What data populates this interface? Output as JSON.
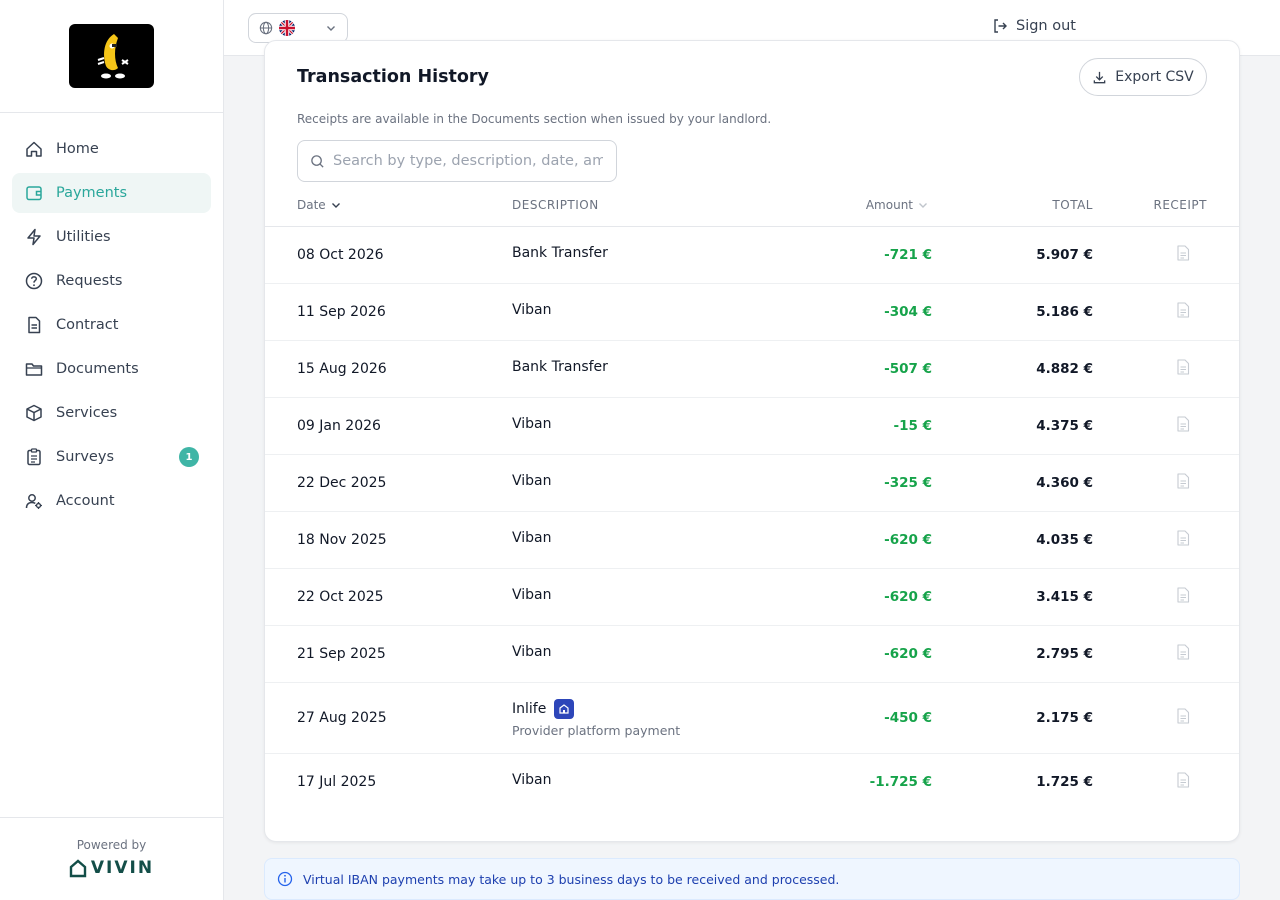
{
  "sidebar": {
    "logo_alt": "Tenant logo",
    "items": [
      {
        "label": "Home",
        "icon": "home-icon"
      },
      {
        "label": "Payments",
        "icon": "wallet-icon",
        "active": true
      },
      {
        "label": "Utilities",
        "icon": "lightning-icon"
      },
      {
        "label": "Requests",
        "icon": "question-icon"
      },
      {
        "label": "Contract",
        "icon": "document-icon"
      },
      {
        "label": "Documents",
        "icon": "folder-icon"
      },
      {
        "label": "Services",
        "icon": "box-icon"
      },
      {
        "label": "Surveys",
        "icon": "clipboard-icon",
        "badge": "1"
      },
      {
        "label": "Account",
        "icon": "user-gear-icon"
      }
    ],
    "powered_by": "Powered by",
    "brand": "VIVIN"
  },
  "topbar": {
    "language": "English (UK)",
    "sign_out": "Sign out"
  },
  "card": {
    "title": "Transaction History",
    "export_label": "Export CSV",
    "note": "Receipts are available in the Documents section when issued by your landlord.",
    "search_placeholder": "Search by type, description, date, amount...",
    "columns": {
      "date": "Date",
      "description": "DESCRIPTION",
      "amount": "Amount",
      "total": "TOTAL",
      "receipt": "RECEIPT"
    },
    "rows": [
      {
        "date": "08 Oct 2026",
        "description": "Bank Transfer",
        "amount": "-721 €",
        "total": "5.907 €"
      },
      {
        "date": "11 Sep 2026",
        "description": "Viban",
        "amount": "-304 €",
        "total": "5.186 €"
      },
      {
        "date": "15 Aug 2026",
        "description": "Bank Transfer",
        "amount": "-507 €",
        "total": "4.882 €"
      },
      {
        "date": "09 Jan 2026",
        "description": "Viban",
        "amount": "-15 €",
        "total": "4.375 €"
      },
      {
        "date": "22 Dec 2025",
        "description": "Viban",
        "amount": "-325 €",
        "total": "4.360 €"
      },
      {
        "date": "18 Nov 2025",
        "description": "Viban",
        "amount": "-620 €",
        "total": "4.035 €"
      },
      {
        "date": "22 Oct 2025",
        "description": "Viban",
        "amount": "-620 €",
        "total": "3.415 €"
      },
      {
        "date": "21 Sep 2025",
        "description": "Viban",
        "amount": "-620 €",
        "total": "2.795 €"
      },
      {
        "date": "27 Aug 2025",
        "description": "Inlife",
        "sub": "Provider platform payment",
        "provider_icon": "building-icon",
        "amount": "-450 €",
        "total": "2.175 €"
      },
      {
        "date": "17 Jul 2025",
        "description": "Viban",
        "amount": "-1.725 €",
        "total": "1.725 €"
      }
    ]
  },
  "info_banner": "Virtual IBAN payments may take up to 3 business days to be received and processed.",
  "colors": {
    "accent": "#2aa79b",
    "amount_negative": "#16a34a",
    "info": "#1e40af"
  }
}
